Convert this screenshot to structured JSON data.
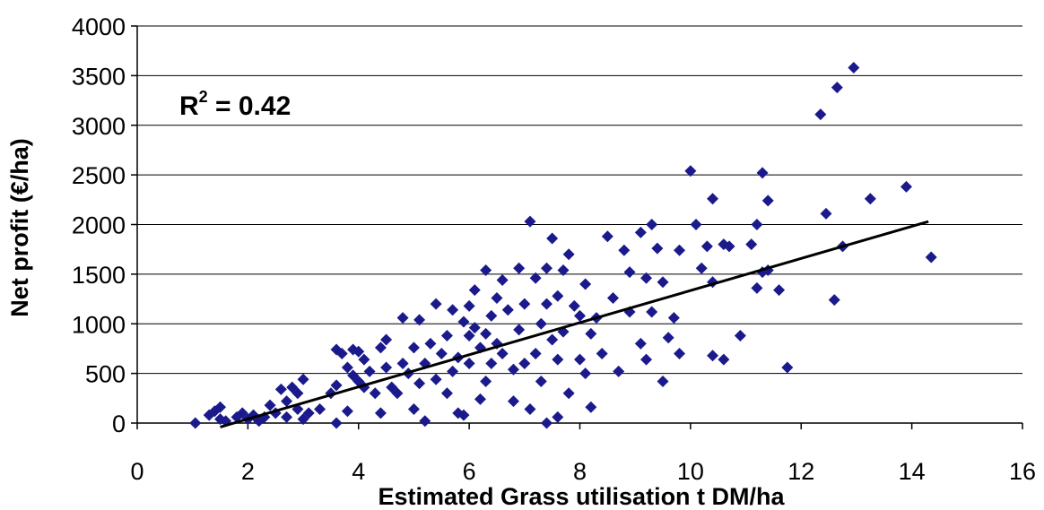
{
  "chart_data": {
    "type": "scatter",
    "xlabel": "Estimated Grass utilisation t DM/ha",
    "ylabel": "Net profit (€/ha)",
    "xlim": [
      0,
      16
    ],
    "ylim": [
      0,
      4000
    ],
    "xticks": [
      "0",
      "2",
      "4",
      "6",
      "8",
      "10",
      "12",
      "14",
      "16"
    ],
    "yticks": [
      "0",
      "500",
      "1000",
      "1500",
      "2000",
      "2500",
      "3000",
      "3500",
      "4000"
    ],
    "grid": "horizontal",
    "marker_color": "#1a1a8c",
    "trendline_color": "#000000",
    "annotation": {
      "base": "R",
      "sup": "2",
      "rest": " = 0.42"
    },
    "trendline": {
      "x": [
        1.5,
        14.3
      ],
      "y": [
        -40,
        2030
      ]
    },
    "series": [
      {
        "points": [
          [
            1.05,
            0
          ],
          [
            1.3,
            80
          ],
          [
            1.4,
            120
          ],
          [
            1.5,
            160
          ],
          [
            1.5,
            40
          ],
          [
            1.6,
            20
          ],
          [
            1.8,
            60
          ],
          [
            1.9,
            100
          ],
          [
            2.0,
            40
          ],
          [
            2.1,
            80
          ],
          [
            2.2,
            20
          ],
          [
            2.3,
            60
          ],
          [
            2.4,
            180
          ],
          [
            2.5,
            100
          ],
          [
            2.6,
            340
          ],
          [
            2.7,
            220
          ],
          [
            2.7,
            60
          ],
          [
            2.8,
            360
          ],
          [
            2.9,
            300
          ],
          [
            2.9,
            140
          ],
          [
            3.0,
            440
          ],
          [
            3.0,
            40
          ],
          [
            3.1,
            100
          ],
          [
            3.3,
            140
          ],
          [
            3.5,
            300
          ],
          [
            3.6,
            380
          ],
          [
            3.6,
            740
          ],
          [
            3.6,
            0
          ],
          [
            3.7,
            700
          ],
          [
            3.8,
            120
          ],
          [
            3.8,
            560
          ],
          [
            3.9,
            740
          ],
          [
            3.9,
            480
          ],
          [
            4.0,
            720
          ],
          [
            4.0,
            420
          ],
          [
            4.1,
            640
          ],
          [
            4.1,
            360
          ],
          [
            4.2,
            520
          ],
          [
            4.3,
            300
          ],
          [
            4.4,
            760
          ],
          [
            4.4,
            100
          ],
          [
            4.5,
            840
          ],
          [
            4.5,
            560
          ],
          [
            4.6,
            360
          ],
          [
            4.7,
            300
          ],
          [
            4.8,
            600
          ],
          [
            4.8,
            1060
          ],
          [
            4.9,
            500
          ],
          [
            5.0,
            760
          ],
          [
            5.0,
            140
          ],
          [
            5.1,
            1040
          ],
          [
            5.1,
            400
          ],
          [
            5.2,
            600
          ],
          [
            5.2,
            20
          ],
          [
            5.3,
            800
          ],
          [
            5.4,
            440
          ],
          [
            5.4,
            1200
          ],
          [
            5.5,
            700
          ],
          [
            5.6,
            880
          ],
          [
            5.6,
            300
          ],
          [
            5.7,
            1140
          ],
          [
            5.7,
            520
          ],
          [
            5.8,
            660
          ],
          [
            5.8,
            100
          ],
          [
            5.9,
            1020
          ],
          [
            5.9,
            80
          ],
          [
            6.0,
            1180
          ],
          [
            6.0,
            880
          ],
          [
            6.0,
            600
          ],
          [
            6.1,
            960
          ],
          [
            6.1,
            1340
          ],
          [
            6.2,
            760
          ],
          [
            6.2,
            240
          ],
          [
            6.3,
            1540
          ],
          [
            6.3,
            900
          ],
          [
            6.3,
            420
          ],
          [
            6.4,
            1080
          ],
          [
            6.4,
            600
          ],
          [
            6.5,
            1260
          ],
          [
            6.5,
            800
          ],
          [
            6.6,
            1440
          ],
          [
            6.6,
            700
          ],
          [
            6.7,
            1140
          ],
          [
            6.8,
            540
          ],
          [
            6.8,
            220
          ],
          [
            6.9,
            1560
          ],
          [
            6.9,
            940
          ],
          [
            7.0,
            600
          ],
          [
            7.0,
            1200
          ],
          [
            7.1,
            2030
          ],
          [
            7.1,
            140
          ],
          [
            7.2,
            1460
          ],
          [
            7.2,
            700
          ],
          [
            7.3,
            1000
          ],
          [
            7.3,
            420
          ],
          [
            7.4,
            1560
          ],
          [
            7.4,
            1200
          ],
          [
            7.4,
            0
          ],
          [
            7.5,
            1860
          ],
          [
            7.5,
            840
          ],
          [
            7.6,
            1280
          ],
          [
            7.6,
            640
          ],
          [
            7.6,
            60
          ],
          [
            7.7,
            1540
          ],
          [
            7.7,
            920
          ],
          [
            7.8,
            1700
          ],
          [
            7.8,
            300
          ],
          [
            7.9,
            1180
          ],
          [
            8.0,
            1080
          ],
          [
            8.0,
            640
          ],
          [
            8.1,
            1400
          ],
          [
            8.1,
            500
          ],
          [
            8.2,
            900
          ],
          [
            8.2,
            160
          ],
          [
            8.3,
            1060
          ],
          [
            8.4,
            700
          ],
          [
            8.5,
            1880
          ],
          [
            8.6,
            1260
          ],
          [
            8.7,
            520
          ],
          [
            8.8,
            1740
          ],
          [
            8.9,
            1520
          ],
          [
            8.9,
            1120
          ],
          [
            9.1,
            1920
          ],
          [
            9.1,
            800
          ],
          [
            9.2,
            1460
          ],
          [
            9.2,
            640
          ],
          [
            9.3,
            2000
          ],
          [
            9.3,
            1120
          ],
          [
            9.4,
            1760
          ],
          [
            9.5,
            1420
          ],
          [
            9.5,
            420
          ],
          [
            9.6,
            860
          ],
          [
            9.7,
            1060
          ],
          [
            9.8,
            1740
          ],
          [
            9.8,
            700
          ],
          [
            10.0,
            2540
          ],
          [
            10.1,
            2000
          ],
          [
            10.2,
            1560
          ],
          [
            10.3,
            1780
          ],
          [
            10.4,
            2260
          ],
          [
            10.4,
            1420
          ],
          [
            10.4,
            680
          ],
          [
            10.6,
            1800
          ],
          [
            10.6,
            640
          ],
          [
            10.7,
            1780
          ],
          [
            10.9,
            880
          ],
          [
            11.1,
            1800
          ],
          [
            11.2,
            2000
          ],
          [
            11.2,
            1360
          ],
          [
            11.3,
            2520
          ],
          [
            11.3,
            1520
          ],
          [
            11.4,
            2240
          ],
          [
            11.4,
            1540
          ],
          [
            11.6,
            1340
          ],
          [
            11.75,
            560
          ],
          [
            12.35,
            3110
          ],
          [
            12.45,
            2110
          ],
          [
            12.6,
            1240
          ],
          [
            12.65,
            3380
          ],
          [
            12.75,
            1780
          ],
          [
            12.95,
            3580
          ],
          [
            13.25,
            2260
          ],
          [
            13.9,
            2380
          ],
          [
            14.35,
            1670
          ]
        ]
      }
    ]
  }
}
